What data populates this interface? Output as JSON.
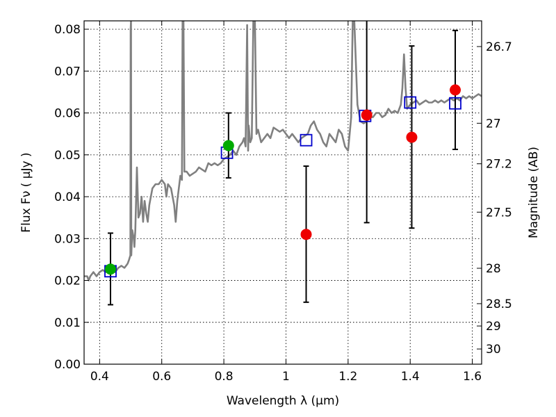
{
  "chart_data": {
    "type": "scatter",
    "xlabel": "Wavelength  λ (μm)",
    "ylabel": "Flux  Fν  ( μJy )",
    "y2label": "Magnitude (AB)",
    "xlim": [
      0.35,
      1.63
    ],
    "ylim": [
      0.0,
      0.082
    ],
    "grid": true,
    "x_ticks": [
      {
        "value": 0.4,
        "label": "0.4"
      },
      {
        "value": 0.6,
        "label": "0.6"
      },
      {
        "value": 0.8,
        "label": "0.8"
      },
      {
        "value": 1.0,
        "label": "1"
      },
      {
        "value": 1.2,
        "label": "1.2"
      },
      {
        "value": 1.4,
        "label": "1.4"
      },
      {
        "value": 1.6,
        "label": "1.6"
      }
    ],
    "y_ticks": [
      {
        "value": 0.0,
        "label": "0.00"
      },
      {
        "value": 0.01,
        "label": "0.01"
      },
      {
        "value": 0.02,
        "label": "0.02"
      },
      {
        "value": 0.03,
        "label": "0.03"
      },
      {
        "value": 0.04,
        "label": "0.04"
      },
      {
        "value": 0.05,
        "label": "0.05"
      },
      {
        "value": 0.06,
        "label": "0.06"
      },
      {
        "value": 0.07,
        "label": "0.07"
      },
      {
        "value": 0.08,
        "label": "0.08"
      }
    ],
    "y2_ticks": [
      {
        "mag": 26.7,
        "label": "26.7"
      },
      {
        "mag": 27.0,
        "label": "27"
      },
      {
        "mag": 27.2,
        "label": "27.2"
      },
      {
        "mag": 27.5,
        "label": "27.5"
      },
      {
        "mag": 28.0,
        "label": "28"
      },
      {
        "mag": 28.5,
        "label": "28.5"
      },
      {
        "mag": 29.0,
        "label": "29"
      },
      {
        "mag": 30.0,
        "label": "30"
      }
    ],
    "template_spectrum": {
      "color": "#808080",
      "points": [
        [
          0.35,
          0.021
        ],
        [
          0.36,
          0.021
        ],
        [
          0.365,
          0.02
        ],
        [
          0.37,
          0.021
        ],
        [
          0.38,
          0.022
        ],
        [
          0.39,
          0.021
        ],
        [
          0.4,
          0.022
        ],
        [
          0.41,
          0.0225
        ],
        [
          0.42,
          0.022
        ],
        [
          0.43,
          0.0225
        ],
        [
          0.44,
          0.023
        ],
        [
          0.45,
          0.022
        ],
        [
          0.46,
          0.023
        ],
        [
          0.47,
          0.0235
        ],
        [
          0.48,
          0.023
        ],
        [
          0.49,
          0.024
        ],
        [
          0.495,
          0.025
        ],
        [
          0.499,
          0.026
        ],
        [
          0.5,
          0.08
        ],
        [
          0.501,
          0.082
        ],
        [
          0.502,
          0.026
        ],
        [
          0.505,
          0.032
        ],
        [
          0.51,
          0.03
        ],
        [
          0.512,
          0.028
        ],
        [
          0.515,
          0.032
        ],
        [
          0.52,
          0.047
        ],
        [
          0.525,
          0.035
        ],
        [
          0.53,
          0.036
        ],
        [
          0.535,
          0.04
        ],
        [
          0.54,
          0.034
        ],
        [
          0.545,
          0.039
        ],
        [
          0.55,
          0.036
        ],
        [
          0.555,
          0.034
        ],
        [
          0.56,
          0.038
        ],
        [
          0.57,
          0.042
        ],
        [
          0.58,
          0.043
        ],
        [
          0.59,
          0.043
        ],
        [
          0.6,
          0.044
        ],
        [
          0.61,
          0.043
        ],
        [
          0.615,
          0.04
        ],
        [
          0.62,
          0.043
        ],
        [
          0.63,
          0.042
        ],
        [
          0.64,
          0.038
        ],
        [
          0.645,
          0.034
        ],
        [
          0.65,
          0.039
        ],
        [
          0.66,
          0.045
        ],
        [
          0.665,
          0.044
        ],
        [
          0.667,
          0.082
        ],
        [
          0.67,
          0.082
        ],
        [
          0.673,
          0.046
        ],
        [
          0.68,
          0.046
        ],
        [
          0.69,
          0.045
        ],
        [
          0.7,
          0.0455
        ],
        [
          0.71,
          0.046
        ],
        [
          0.72,
          0.047
        ],
        [
          0.73,
          0.0465
        ],
        [
          0.74,
          0.046
        ],
        [
          0.75,
          0.048
        ],
        [
          0.76,
          0.0475
        ],
        [
          0.77,
          0.048
        ],
        [
          0.78,
          0.0475
        ],
        [
          0.79,
          0.048
        ],
        [
          0.8,
          0.049
        ],
        [
          0.81,
          0.0495
        ],
        [
          0.82,
          0.05
        ],
        [
          0.83,
          0.051
        ],
        [
          0.84,
          0.05
        ],
        [
          0.85,
          0.052
        ],
        [
          0.86,
          0.053
        ],
        [
          0.865,
          0.054
        ],
        [
          0.87,
          0.052
        ],
        [
          0.875,
          0.081
        ],
        [
          0.878,
          0.051
        ],
        [
          0.88,
          0.057
        ],
        [
          0.885,
          0.053
        ],
        [
          0.89,
          0.054
        ],
        [
          0.895,
          0.082
        ],
        [
          0.9,
          0.082
        ],
        [
          0.905,
          0.055
        ],
        [
          0.91,
          0.056
        ],
        [
          0.92,
          0.053
        ],
        [
          0.93,
          0.054
        ],
        [
          0.94,
          0.055
        ],
        [
          0.95,
          0.054
        ],
        [
          0.96,
          0.0565
        ],
        [
          0.97,
          0.056
        ],
        [
          0.98,
          0.0555
        ],
        [
          0.99,
          0.056
        ],
        [
          1.0,
          0.055
        ],
        [
          1.01,
          0.054
        ],
        [
          1.02,
          0.055
        ],
        [
          1.03,
          0.054
        ],
        [
          1.04,
          0.053
        ],
        [
          1.05,
          0.054
        ],
        [
          1.06,
          0.0545
        ],
        [
          1.07,
          0.055
        ],
        [
          1.08,
          0.057
        ],
        [
          1.09,
          0.058
        ],
        [
          1.1,
          0.056
        ],
        [
          1.11,
          0.055
        ],
        [
          1.12,
          0.053
        ],
        [
          1.13,
          0.052
        ],
        [
          1.14,
          0.055
        ],
        [
          1.15,
          0.054
        ],
        [
          1.16,
          0.053
        ],
        [
          1.17,
          0.056
        ],
        [
          1.18,
          0.055
        ],
        [
          1.19,
          0.052
        ],
        [
          1.2,
          0.051
        ],
        [
          1.205,
          0.055
        ],
        [
          1.21,
          0.059
        ],
        [
          1.215,
          0.082
        ],
        [
          1.22,
          0.082
        ],
        [
          1.23,
          0.062
        ],
        [
          1.24,
          0.058
        ],
        [
          1.25,
          0.0575
        ],
        [
          1.26,
          0.058
        ],
        [
          1.27,
          0.059
        ],
        [
          1.28,
          0.059
        ],
        [
          1.29,
          0.06
        ],
        [
          1.3,
          0.06
        ],
        [
          1.31,
          0.059
        ],
        [
          1.32,
          0.0595
        ],
        [
          1.33,
          0.061
        ],
        [
          1.34,
          0.06
        ],
        [
          1.35,
          0.0605
        ],
        [
          1.36,
          0.06
        ],
        [
          1.37,
          0.062
        ],
        [
          1.375,
          0.066
        ],
        [
          1.38,
          0.074
        ],
        [
          1.385,
          0.066
        ],
        [
          1.39,
          0.061
        ],
        [
          1.4,
          0.062
        ],
        [
          1.41,
          0.0625
        ],
        [
          1.42,
          0.063
        ],
        [
          1.43,
          0.062
        ],
        [
          1.44,
          0.0625
        ],
        [
          1.45,
          0.063
        ],
        [
          1.46,
          0.0625
        ],
        [
          1.47,
          0.0625
        ],
        [
          1.48,
          0.063
        ],
        [
          1.49,
          0.0625
        ],
        [
          1.5,
          0.063
        ],
        [
          1.51,
          0.0625
        ],
        [
          1.52,
          0.063
        ],
        [
          1.53,
          0.0635
        ],
        [
          1.54,
          0.063
        ],
        [
          1.55,
          0.0635
        ],
        [
          1.56,
          0.063
        ],
        [
          1.57,
          0.064
        ],
        [
          1.58,
          0.0635
        ],
        [
          1.59,
          0.064
        ],
        [
          1.6,
          0.0635
        ],
        [
          1.61,
          0.064
        ],
        [
          1.62,
          0.0645
        ],
        [
          1.63,
          0.064
        ]
      ]
    },
    "series": [
      {
        "marker": "open-square",
        "color": "#0000cc",
        "points": [
          {
            "x": 0.435,
            "y": 0.0222
          },
          {
            "x": 0.81,
            "y": 0.0505
          },
          {
            "x": 1.065,
            "y": 0.0535
          },
          {
            "x": 1.255,
            "y": 0.0593
          },
          {
            "x": 1.4,
            "y": 0.0625
          },
          {
            "x": 1.545,
            "y": 0.0623
          }
        ]
      },
      {
        "marker": "filled-circle",
        "color": "#00aa00",
        "points": [
          {
            "x": 0.435,
            "y": 0.0227,
            "yerr_low": 0.0142,
            "yerr_high": 0.0313
          },
          {
            "x": 0.815,
            "y": 0.0522,
            "yerr_low": 0.0445,
            "yerr_high": 0.06
          }
        ]
      },
      {
        "marker": "filled-circle",
        "color": "#ee0000",
        "points": [
          {
            "x": 1.065,
            "y": 0.031,
            "yerr_low": 0.0148,
            "yerr_high": 0.0473
          },
          {
            "x": 1.26,
            "y": 0.0595,
            "yerr_low": 0.0338,
            "yerr_high": 0.085
          },
          {
            "x": 1.405,
            "y": 0.0542,
            "yerr_low": 0.0325,
            "yerr_high": 0.076
          },
          {
            "x": 1.545,
            "y": 0.0655,
            "yerr_low": 0.0513,
            "yerr_high": 0.0797
          }
        ]
      }
    ]
  }
}
